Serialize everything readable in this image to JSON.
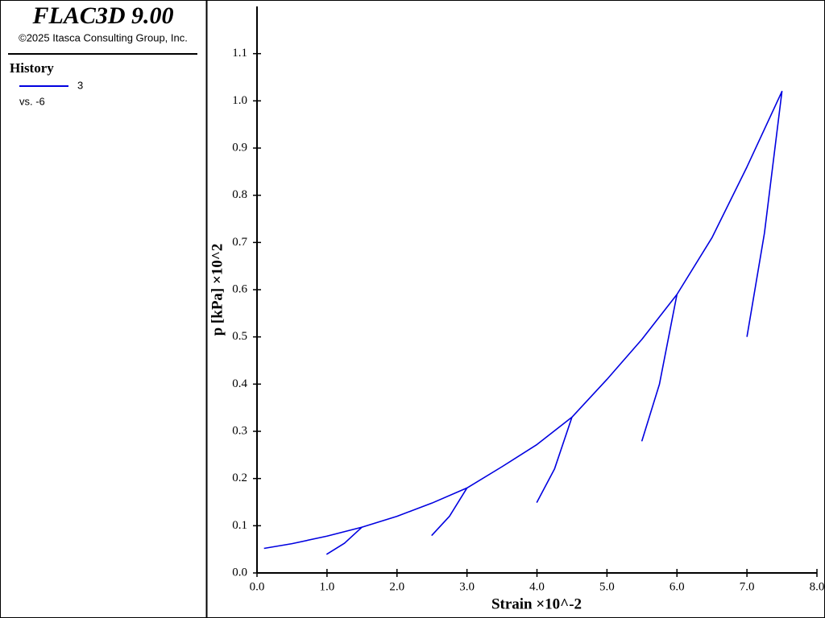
{
  "panel": {
    "title": "FLAC3D 9.00",
    "copyright": "©2025 Itasca Consulting Group, Inc.",
    "heading": "History",
    "x_history": "vs. -6"
  },
  "chart_data": {
    "type": "line",
    "x_label": "Strain ×10^-2",
    "y_label": "p [kPa] ×10^2",
    "x": [
      0.1,
      0.5,
      1.0,
      1.5,
      1.25,
      1.0,
      1.25,
      1.5,
      2.0,
      2.5,
      3.0,
      2.75,
      2.5,
      2.75,
      3.0,
      3.5,
      4.0,
      4.5,
      4.25,
      4.0,
      4.25,
      4.5,
      5.0,
      5.5,
      6.0,
      5.75,
      5.5,
      5.75,
      6.0,
      6.5,
      7.0,
      7.5,
      7.25,
      7.0
    ],
    "series": [
      {
        "name": "3",
        "color": "#0000e0",
        "values": [
          0.052,
          0.062,
          0.078,
          0.097,
          0.063,
          0.04,
          0.063,
          0.097,
          0.12,
          0.148,
          0.18,
          0.12,
          0.08,
          0.12,
          0.18,
          0.225,
          0.272,
          0.33,
          0.22,
          0.15,
          0.22,
          0.33,
          0.41,
          0.495,
          0.59,
          0.4,
          0.28,
          0.4,
          0.59,
          0.71,
          0.86,
          1.02,
          0.72,
          0.5
        ]
      }
    ],
    "xlim": [
      0,
      8
    ],
    "ylim": [
      0,
      1.2
    ],
    "xticks": [
      {
        "value": 0,
        "label": "0.0"
      },
      {
        "value": 1,
        "label": "1.0"
      },
      {
        "value": 2,
        "label": "2.0"
      },
      {
        "value": 3,
        "label": "3.0"
      },
      {
        "value": 4,
        "label": "4.0"
      },
      {
        "value": 5,
        "label": "5.0"
      },
      {
        "value": 6,
        "label": "6.0"
      },
      {
        "value": 7,
        "label": "7.0"
      },
      {
        "value": 8,
        "label": "8.0"
      }
    ],
    "yticks": [
      {
        "value": 0,
        "label": "0.0"
      },
      0.1,
      0.2,
      0.3,
      0.4,
      0.5,
      0.6,
      0.7,
      0.8,
      0.9,
      {
        "value": 1,
        "label": "1.0"
      },
      1.1
    ]
  }
}
